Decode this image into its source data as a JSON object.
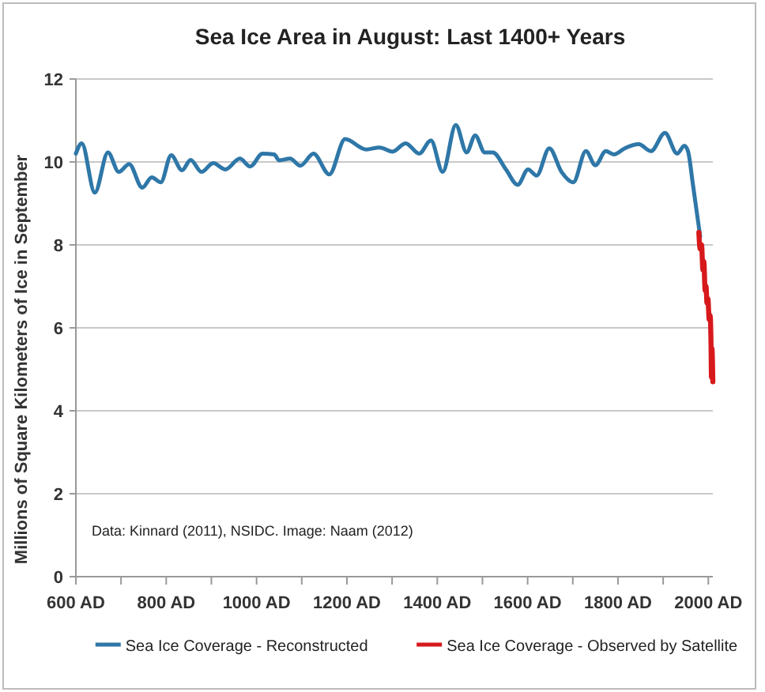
{
  "chart_data": {
    "type": "line",
    "title": "Sea Ice Area in August: Last 1400+ Years",
    "ylabel": "Millions of Square Kilometers of Ice in September",
    "annotations": [
      "Data: Kinnard (2011),  NSIDC.    Image:  Naam (2012)"
    ],
    "xlim": [
      600,
      2010
    ],
    "xticks": [
      {
        "value": 600,
        "label": "600 AD"
      },
      {
        "value": 700,
        "label": null
      },
      {
        "value": 800,
        "label": "800 AD"
      },
      {
        "value": 900,
        "label": null
      },
      {
        "value": 1000,
        "label": "1000 AD"
      },
      {
        "value": 1100,
        "label": null
      },
      {
        "value": 1200,
        "label": "1200 AD"
      },
      {
        "value": 1300,
        "label": null
      },
      {
        "value": 1400,
        "label": "1400 AD"
      },
      {
        "value": 1500,
        "label": null
      },
      {
        "value": 1600,
        "label": "1600 AD"
      },
      {
        "value": 1700,
        "label": null
      },
      {
        "value": 1800,
        "label": "1800 AD"
      },
      {
        "value": 1900,
        "label": null
      },
      {
        "value": 2000,
        "label": "2000 AD"
      }
    ],
    "ylim": [
      0,
      12
    ],
    "yticks": [
      0,
      2,
      4,
      6,
      8,
      10,
      12
    ],
    "grid": "y",
    "legend": "bottom",
    "series": [
      {
        "name": "Sea Ice Coverage - Reconstructed",
        "color": "#2e77a8",
        "x": [
          600,
          613,
          642,
          671,
          695,
          718,
          747,
          768,
          788,
          811,
          835,
          854,
          878,
          904,
          931,
          963,
          986,
          1013,
          1039,
          1050,
          1074,
          1097,
          1126,
          1161,
          1196,
          1243,
          1272,
          1301,
          1330,
          1360,
          1386,
          1412,
          1441,
          1465,
          1484,
          1505,
          1523,
          1552,
          1578,
          1601,
          1620,
          1648,
          1675,
          1701,
          1729,
          1750,
          1773,
          1791,
          1815,
          1846,
          1873,
          1904,
          1931,
          1947,
          1955,
          1966,
          1982
        ],
        "values": [
          10.2,
          10.45,
          9.26,
          10.23,
          9.76,
          9.95,
          9.38,
          9.63,
          9.51,
          10.16,
          9.8,
          10.05,
          9.76,
          9.97,
          9.82,
          10.08,
          9.89,
          10.2,
          10.18,
          10.04,
          10.08,
          9.91,
          10.2,
          9.7,
          10.55,
          10.3,
          10.35,
          10.25,
          10.45,
          10.2,
          10.52,
          9.76,
          10.89,
          10.23,
          10.64,
          10.23,
          10.23,
          9.82,
          9.45,
          9.82,
          9.67,
          10.33,
          9.76,
          9.51,
          10.26,
          9.92,
          10.26,
          10.18,
          10.33,
          10.43,
          10.26,
          10.7,
          10.2,
          10.39,
          10.26,
          9.45,
          8.2
        ]
      },
      {
        "name": "Sea Ice Coverage - Observed by Satellite",
        "color": "#d7191c",
        "x": [
          1979,
          1982,
          1985,
          1988,
          1990,
          1993,
          1995,
          1997,
          1999,
          2002,
          2004,
          2006,
          2007,
          2008,
          2010
        ],
        "values": [
          8.3,
          7.9,
          8.0,
          7.4,
          7.6,
          6.9,
          7.0,
          6.6,
          6.7,
          6.2,
          6.3,
          5.6,
          4.8,
          5.5,
          4.7
        ]
      }
    ]
  }
}
